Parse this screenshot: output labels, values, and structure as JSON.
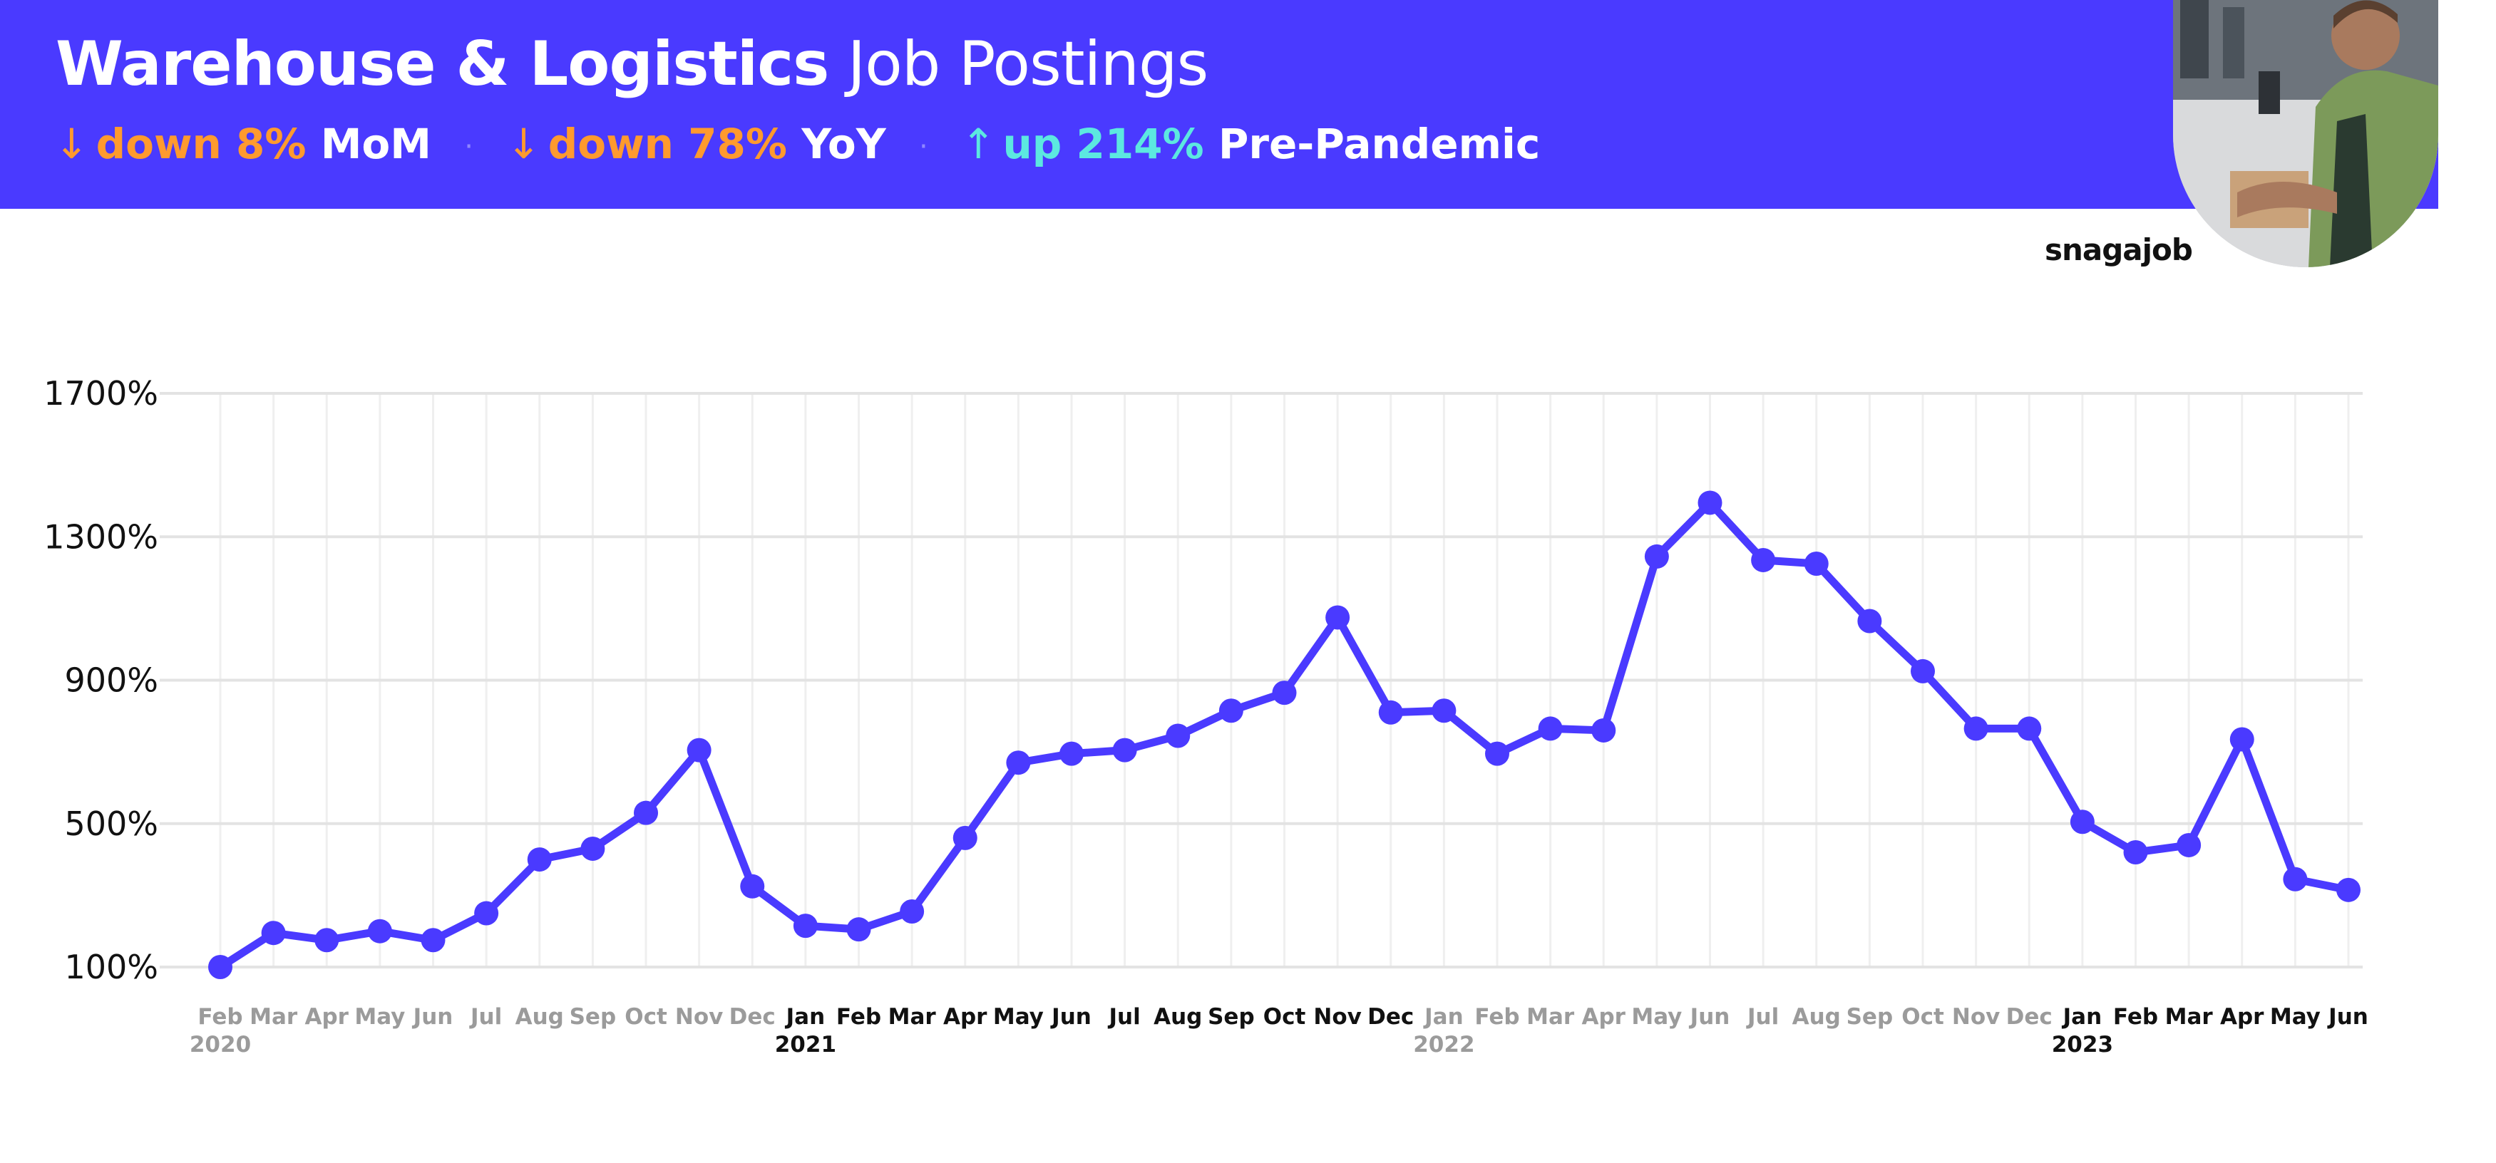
{
  "header": {
    "title_bold": "Warehouse & Logistics",
    "title_regular": "Job Postings",
    "stats": [
      {
        "arrow": "↓",
        "direction": "down",
        "value": "down 8%",
        "label": "MoM"
      },
      {
        "arrow": "↓",
        "direction": "down",
        "value": "down 78%",
        "label": "YoY"
      },
      {
        "arrow": "↑",
        "direction": "up",
        "value": "up 214%",
        "label": "Pre-Pandemic"
      }
    ],
    "separator": "·",
    "photo_icon": "delivery-worker-photo"
  },
  "brand": {
    "logo_text": "snagajob"
  },
  "colors": {
    "accent": "#4a3aff",
    "down": "#ff9a2e",
    "up": "#5ce8e0",
    "line": "#4a3aff"
  },
  "chart_data": {
    "type": "line",
    "title": "",
    "xlabel": "",
    "ylabel": "",
    "ylim": [
      100,
      1700
    ],
    "yticks": [
      "100%",
      "500%",
      "900%",
      "1300%",
      "1700%"
    ],
    "ytick_values": [
      100,
      500,
      900,
      1300,
      1700
    ],
    "grid": true,
    "months": [
      "Feb",
      "Mar",
      "Apr",
      "May",
      "Jun",
      "Jul",
      "Aug",
      "Sep",
      "Oct",
      "Nov",
      "Dec",
      "Jan",
      "Feb",
      "Mar",
      "Apr",
      "May",
      "Jun",
      "Jul",
      "Aug",
      "Sep",
      "Oct",
      "Nov",
      "Dec",
      "Jan",
      "Feb",
      "Mar",
      "Apr",
      "May",
      "Jun",
      "Jul",
      "Aug",
      "Sep",
      "Oct",
      "Nov",
      "Dec",
      "Jan",
      "Feb",
      "Mar",
      "Apr",
      "May",
      "Jun"
    ],
    "years": [
      {
        "label": "2020",
        "index": 0
      },
      {
        "label": "2021",
        "index": 11
      },
      {
        "label": "2022",
        "index": 23
      },
      {
        "label": "2023",
        "index": 35
      }
    ],
    "emphasized_range": [
      11,
      22
    ],
    "emphasized_range_2": [
      35,
      40
    ],
    "values": [
      100,
      195,
      175,
      200,
      175,
      250,
      400,
      430,
      530,
      705,
      325,
      215,
      205,
      255,
      460,
      670,
      695,
      705,
      745,
      815,
      865,
      1075,
      810,
      815,
      695,
      765,
      760,
      1245,
      1395,
      1235,
      1225,
      1065,
      925,
      765,
      765,
      505,
      420,
      440,
      735,
      345,
      315
    ]
  }
}
